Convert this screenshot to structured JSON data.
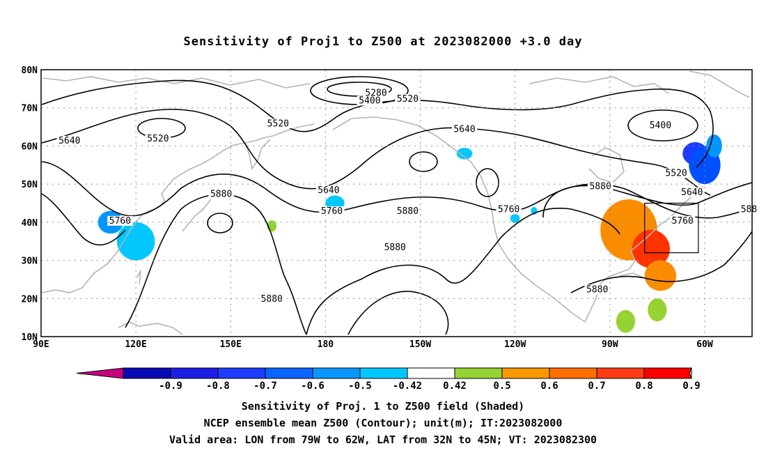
{
  "title": "Sensitivity of Proj1 to Z500 at 2023082000 +3.0 day",
  "map": {
    "lat_labels": [
      "80N",
      "70N",
      "60N",
      "50N",
      "40N",
      "30N",
      "20N",
      "10N"
    ],
    "lon_labels": [
      "90E",
      "120E",
      "150E",
      "180",
      "150W",
      "120W",
      "90W",
      "60W"
    ],
    "lat_values": [
      80,
      70,
      60,
      50,
      40,
      30,
      20,
      10
    ],
    "lon_values": [
      90,
      120,
      150,
      180,
      210,
      240,
      270,
      300
    ],
    "lon_range": [
      90,
      315
    ],
    "lat_range": [
      10,
      80
    ],
    "grid": "dotted",
    "valid_area_box": {
      "lon": [
        -79,
        -62
      ],
      "lat": [
        32,
        45
      ]
    }
  },
  "contour_labels": [
    {
      "text": "5280",
      "lon": 196,
      "lat": 73.5
    },
    {
      "text": "5400",
      "lon": 194,
      "lat": 71.5
    },
    {
      "text": "5520",
      "lon": 206,
      "lat": 72
    },
    {
      "text": "5520",
      "lon": 165,
      "lat": 65.5
    },
    {
      "text": "5520",
      "lon": 127,
      "lat": 61.5
    },
    {
      "text": "5640",
      "lon": 99,
      "lat": 61
    },
    {
      "text": "5640",
      "lon": 224,
      "lat": 64
    },
    {
      "text": "5400",
      "lon": 286,
      "lat": 65
    },
    {
      "text": "5520",
      "lon": 291,
      "lat": 52.5
    },
    {
      "text": "5640",
      "lon": 296,
      "lat": 47.5
    },
    {
      "text": "5640",
      "lon": 181,
      "lat": 48
    },
    {
      "text": "5760",
      "lon": 182,
      "lat": 42.5
    },
    {
      "text": "5760",
      "lon": 115,
      "lat": 40
    },
    {
      "text": "5880",
      "lon": 147,
      "lat": 47
    },
    {
      "text": "5880",
      "lon": 206,
      "lat": 42.5
    },
    {
      "text": "5880",
      "lon": 202,
      "lat": 33
    },
    {
      "text": "5880",
      "lon": 163,
      "lat": 19.5
    },
    {
      "text": "5760",
      "lon": 238,
      "lat": 43
    },
    {
      "text": "5880",
      "lon": 267,
      "lat": 49
    },
    {
      "text": "5880",
      "lon": 266,
      "lat": 22
    },
    {
      "text": "5760",
      "lon": 293,
      "lat": 40
    },
    {
      "text": "588",
      "lon": 314,
      "lat": 43
    }
  ],
  "shading": [
    {
      "lon": 297,
      "lat": 58,
      "rx": 4,
      "ry": 3,
      "color": "#1e3cff"
    },
    {
      "lon": 300,
      "lat": 55,
      "rx": 5,
      "ry": 5,
      "color": "#0050ff"
    },
    {
      "lon": 303,
      "lat": 60,
      "rx": 2.5,
      "ry": 3,
      "color": "#0096ff"
    },
    {
      "lon": 276,
      "lat": 38,
      "rx": 9,
      "ry": 8,
      "color": "#fa8c00"
    },
    {
      "lon": 283,
      "lat": 33,
      "rx": 6,
      "ry": 5,
      "color": "#ff3200"
    },
    {
      "lon": 286,
      "lat": 26,
      "rx": 5,
      "ry": 4,
      "color": "#fa8c00"
    },
    {
      "lon": 285,
      "lat": 17,
      "rx": 3,
      "ry": 3,
      "color": "#96d232"
    },
    {
      "lon": 275,
      "lat": 14,
      "rx": 3,
      "ry": 3,
      "color": "#96d232"
    },
    {
      "lon": 120,
      "lat": 35,
      "rx": 6,
      "ry": 5,
      "color": "#00c8ff"
    },
    {
      "lon": 112,
      "lat": 40,
      "rx": 4,
      "ry": 3,
      "color": "#0096ff"
    },
    {
      "lon": 163,
      "lat": 39,
      "rx": 1.5,
      "ry": 1.5,
      "color": "#96d232"
    },
    {
      "lon": 183,
      "lat": 45,
      "rx": 3,
      "ry": 2,
      "color": "#00c8ff"
    },
    {
      "lon": 224,
      "lat": 58,
      "rx": 2.5,
      "ry": 1.5,
      "color": "#00c8ff"
    },
    {
      "lon": 240,
      "lat": 41,
      "rx": 1.5,
      "ry": 1.2,
      "color": "#00c8ff"
    },
    {
      "lon": 246,
      "lat": 43,
      "rx": 1,
      "ry": 1,
      "color": "#00c8ff"
    }
  ],
  "colorbar": {
    "tick_labels": [
      "-0.9",
      "-0.8",
      "-0.7",
      "-0.6",
      "-0.5",
      "-0.42",
      "0.42",
      "0.5",
      "0.6",
      "0.7",
      "0.8",
      "0.9"
    ],
    "colors": [
      "#c8007d",
      "#0a0ab4",
      "#1e1ee6",
      "#1e3cff",
      "#0a64ff",
      "#0a96ff",
      "#00c8ff",
      "#ffffff",
      "#96d232",
      "#fa9600",
      "#ff6e00",
      "#ff3c14",
      "#ff0000",
      "#ffa0c8"
    ]
  },
  "captions": [
    "Sensitivity of Proj. 1 to Z500 field (Shaded)",
    "NCEP ensemble mean Z500 (Contour); unit(m); IT:2023082000",
    "Valid area: LON from 79W to 62W, LAT from 32N to 45N; VT: 2023082300"
  ]
}
